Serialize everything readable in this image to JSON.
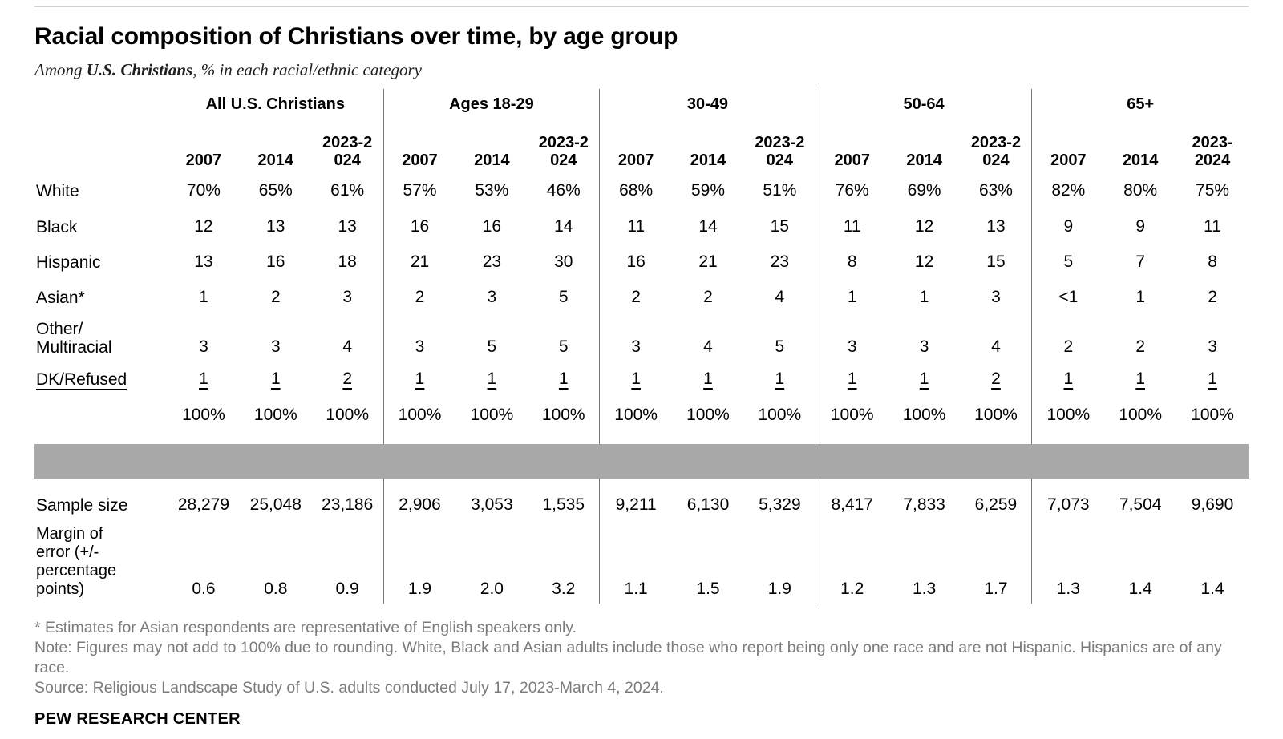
{
  "header": {
    "title": "Racial composition of Christians over time, by age group",
    "subtitle": {
      "prefix": "Among ",
      "emphasis": "U.S. Christians",
      "suffix": ", % in each racial/ethnic category"
    }
  },
  "chart_data": {
    "type": "table",
    "title": "Racial composition of Christians over time, by age group",
    "groups": [
      {
        "label": "All U.S. Christians",
        "years": [
          "2007",
          "2014",
          "2023-2\n024"
        ]
      },
      {
        "label": "Ages 18-29",
        "years": [
          "2007",
          "2014",
          "2023-2\n024"
        ]
      },
      {
        "label": "30-49",
        "years": [
          "2007",
          "2014",
          "2023-2\n024"
        ]
      },
      {
        "label": "50-64",
        "years": [
          "2007",
          "2014",
          "2023-2\n024"
        ]
      },
      {
        "label": "65+",
        "years": [
          "2007",
          "2014",
          "2023-\n2024"
        ]
      }
    ],
    "rows": [
      {
        "label": "White",
        "underline": false,
        "values": [
          "70%",
          "65%",
          "61%",
          "57%",
          "53%",
          "46%",
          "68%",
          "59%",
          "51%",
          "76%",
          "69%",
          "63%",
          "82%",
          "80%",
          "75%"
        ]
      },
      {
        "label": "Black",
        "underline": false,
        "values": [
          "12",
          "13",
          "13",
          "16",
          "16",
          "14",
          "11",
          "14",
          "15",
          "11",
          "12",
          "13",
          "9",
          "9",
          "11"
        ]
      },
      {
        "label": "Hispanic",
        "underline": false,
        "values": [
          "13",
          "16",
          "18",
          "21",
          "23",
          "30",
          "16",
          "21",
          "23",
          "8",
          "12",
          "15",
          "5",
          "7",
          "8"
        ]
      },
      {
        "label": "Asian*",
        "underline": false,
        "values": [
          "1",
          "2",
          "3",
          "2",
          "3",
          "5",
          "2",
          "2",
          "4",
          "1",
          "1",
          "3",
          "<1",
          "1",
          "2"
        ]
      },
      {
        "label": "Other/\nMultiracial",
        "underline": false,
        "values": [
          "3",
          "3",
          "4",
          "3",
          "5",
          "5",
          "3",
          "4",
          "5",
          "3",
          "3",
          "4",
          "2",
          "2",
          "3"
        ]
      },
      {
        "label": "DK/Refused",
        "underline": true,
        "values": [
          "1",
          "1",
          "2",
          "1",
          "1",
          "1",
          "1",
          "1",
          "1",
          "1",
          "1",
          "2",
          "1",
          "1",
          "1"
        ]
      }
    ],
    "total_row": {
      "values": [
        "100%",
        "100%",
        "100%",
        "100%",
        "100%",
        "100%",
        "100%",
        "100%",
        "100%",
        "100%",
        "100%",
        "100%",
        "100%",
        "100%",
        "100%"
      ]
    },
    "sample_size": {
      "label": "Sample size",
      "values": [
        "28,279",
        "25,048",
        "23,186",
        "2,906",
        "3,053",
        "1,535",
        "9,211",
        "6,130",
        "5,329",
        "8,417",
        "7,833",
        "6,259",
        "7,073",
        "7,504",
        "9,690"
      ]
    },
    "margin_of_error": {
      "label": "Margin of\nerror (+/-\npercentage\npoints)",
      "values": [
        "0.6",
        "0.8",
        "0.9",
        "1.9",
        "2.0",
        "3.2",
        "1.1",
        "1.5",
        "1.9",
        "1.2",
        "1.3",
        "1.7",
        "1.3",
        "1.4",
        "1.4"
      ]
    }
  },
  "footnotes": {
    "asterisk": "* Estimates for Asian respondents are representative of English speakers only.",
    "note": "Note: Figures may not add to 100% due to rounding. White, Black and Asian adults include those who report being only one race and are not Hispanic. Hispanics are of any race.",
    "source": "Source: Religious Landscape Study of U.S. adults conducted July 17, 2023-March 4, 2024."
  },
  "footer": {
    "brand": "PEW RESEARCH CENTER"
  },
  "colors": {
    "bar": "#a8a8a8",
    "divider": "#777777",
    "footnote": "#7b7b7b",
    "hairline": "#cfcfcf"
  }
}
